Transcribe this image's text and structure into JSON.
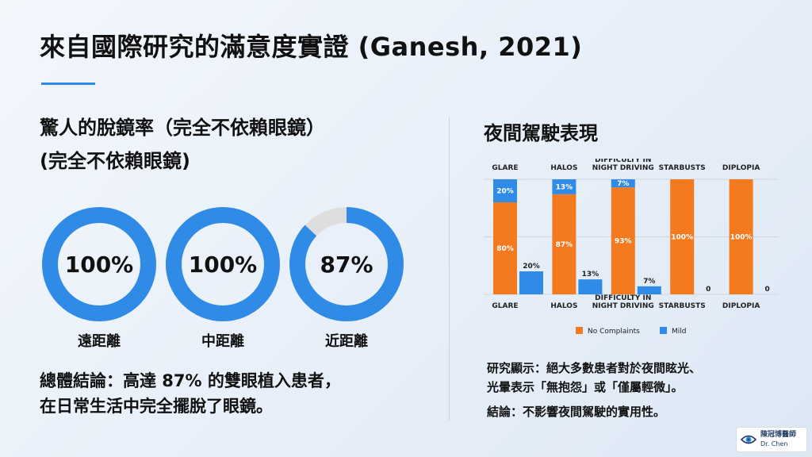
{
  "title": "來自國際研究的滿意度實證 (Ganesh, 2021)",
  "left": {
    "heading_line1": "驚人的脫鏡率（完全不依賴眼鏡）",
    "heading_line2": "(完全不依賴眼鏡)",
    "donuts": [
      {
        "value_label": "100%",
        "percent": 100,
        "label": "遠距離"
      },
      {
        "value_label": "100%",
        "percent": 100,
        "label": "中距離"
      },
      {
        "value_label": "87%",
        "percent": 87,
        "label": "近距離"
      }
    ],
    "conclusion_line1": "總體結論：高達 87% 的雙眼植入患者，",
    "conclusion_line2": "在日常生活中完全擺脫了眼鏡。"
  },
  "right": {
    "heading": "夜間駕駛表現",
    "finding_line1": "研究顯示：絕大多數患者對於夜間眩光、",
    "finding_line2": "光暈表示「無抱怨」或「僅屬輕微」。",
    "finding_line3": "結論：不影響夜間駕駛的實用性。"
  },
  "chart_data": {
    "type": "bar",
    "categories": [
      "GLARE",
      "HALOS",
      "DIFFICULTY IN NIGHT DRIVING",
      "STARBUSTS",
      "DIPLOPIA"
    ],
    "top_labels": [
      "GLARE",
      "HALOS",
      "DIFFICULTY IN NIGHT DRIVING",
      "STARBUSTS",
      "DIPLOPIA"
    ],
    "series": [
      {
        "name": "No Complaints",
        "values": [
          80,
          87,
          93,
          100,
          100
        ],
        "labels": [
          "80%",
          "87%",
          "93%",
          "100%",
          "100%"
        ]
      },
      {
        "name": "Mild",
        "values": [
          20,
          13,
          7,
          0,
          0
        ],
        "labels": [
          "20%",
          "13%",
          "7%",
          "0",
          "0"
        ]
      }
    ],
    "stacked_mild_labels": [
      "20%",
      "13%",
      "7%",
      "",
      ""
    ],
    "ylim": [
      0,
      100
    ],
    "grid": true,
    "legend": "bottom"
  },
  "colors": {
    "accent_blue": "#2f8be6",
    "donut_track": "#dedede",
    "no_complaints": "#f47a20",
    "mild": "#2f8be6"
  },
  "logo": {
    "name_cn": "陳冠博醫師",
    "name_en": "Dr. Chen",
    "icon": "eye-icon"
  }
}
